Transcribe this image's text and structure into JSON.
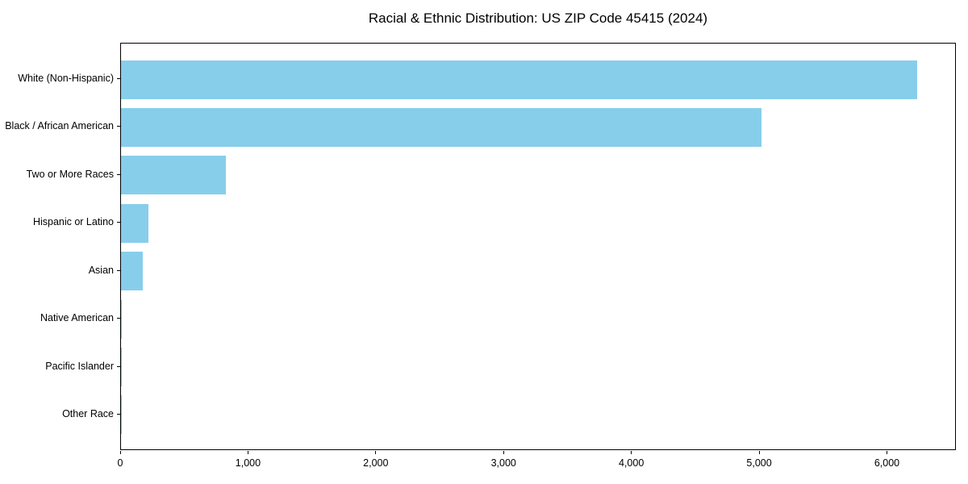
{
  "chart_data": {
    "type": "bar",
    "orientation": "horizontal",
    "title": "Racial & Ethnic Distribution: US ZIP Code 45415 (2024)",
    "categories": [
      "White (Non-Hispanic)",
      "Black / African American",
      "Two or More Races",
      "Hispanic or Latino",
      "Asian",
      "Native American",
      "Pacific Islander",
      "Other Race"
    ],
    "values": [
      6230,
      5010,
      820,
      215,
      170,
      8,
      4,
      2
    ],
    "xlabel": "",
    "ylabel": "",
    "xlim": [
      0,
      6540
    ],
    "x_ticks": [
      0,
      1000,
      2000,
      3000,
      4000,
      5000,
      6000
    ],
    "x_tick_labels": [
      "0",
      "1,000",
      "2,000",
      "3,000",
      "4,000",
      "5,000",
      "6,000"
    ],
    "bar_color": "#87CEEB",
    "axis_color": "#000000",
    "background_color": "#ffffff",
    "grid": false,
    "legend": null
  }
}
